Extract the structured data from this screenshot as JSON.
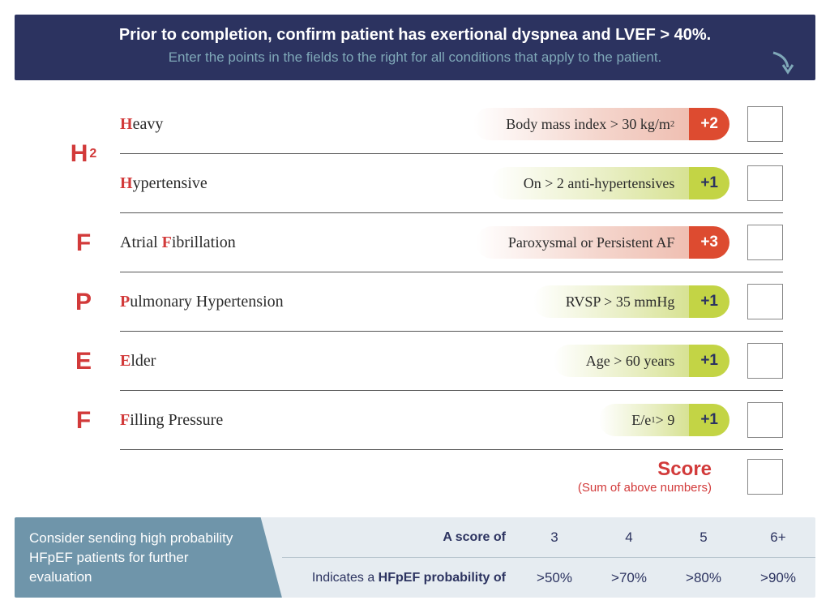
{
  "header": {
    "title": "Prior to completion, confirm patient has exertional dyspnea and LVEF > 40%.",
    "subtitle": "Enter the points in the fields to the right for all conditions that apply to the patient.",
    "bg_color": "#2c3360",
    "sub_color": "#7fa8b8"
  },
  "criteria": [
    {
      "letter": "H",
      "letter_sub": "2",
      "items": [
        {
          "hl": "H",
          "rest": "eavy",
          "desc_pre": "Body mass index > 30 kg/m",
          "desc_sup": "2",
          "points": "+2",
          "color": "red"
        },
        {
          "hl": "H",
          "rest": "ypertensive",
          "desc_pre": "On > 2 anti-hypertensives",
          "desc_sup": "",
          "points": "+1",
          "color": "green"
        }
      ]
    },
    {
      "letter": "F",
      "items": [
        {
          "pre": "Atrial ",
          "hl": "F",
          "rest": "ibrillation",
          "desc_pre": "Paroxysmal or Persistent AF",
          "desc_sup": "",
          "points": "+3",
          "color": "red"
        }
      ]
    },
    {
      "letter": "P",
      "items": [
        {
          "hl": "P",
          "rest": "ulmonary Hypertension",
          "desc_pre": "RVSP > 35 mmHg",
          "desc_sup": "",
          "points": "+1",
          "color": "green"
        }
      ]
    },
    {
      "letter": "E",
      "items": [
        {
          "hl": "E",
          "rest": "lder",
          "desc_pre": "Age > 60 years",
          "desc_sup": "",
          "points": "+1",
          "color": "green"
        }
      ]
    },
    {
      "letter": "F",
      "items": [
        {
          "hl": "F",
          "rest": "illing Pressure",
          "desc_pre": "E/e",
          "desc_sup": "1",
          "desc_post": " > 9",
          "points": "+1",
          "color": "green"
        }
      ]
    }
  ],
  "score": {
    "title": "Score",
    "subtitle": "(Sum of above numbers)"
  },
  "footer": {
    "left": "Consider sending high probability HFpEF patients for further evaluation",
    "row1_label": "A score of",
    "row2_label_pre": "Indicates a ",
    "row2_label_strong": "HFpEF probability of",
    "scores": [
      "3",
      "4",
      "5",
      "6+"
    ],
    "probs": [
      ">50%",
      ">70%",
      ">80%",
      ">90%"
    ],
    "left_bg": "#6f95aa",
    "right_bg": "#e6ecf1"
  },
  "colors": {
    "accent_red": "#d23a3a",
    "pill_red": "#dd4b30",
    "pill_green": "#c3d445"
  }
}
